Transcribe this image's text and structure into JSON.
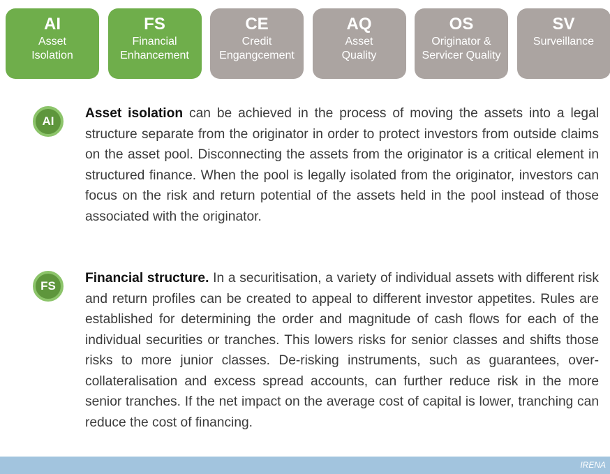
{
  "tabs": [
    {
      "abbr": "AI",
      "label": [
        "Asset",
        "Isolation"
      ],
      "active": true
    },
    {
      "abbr": "FS",
      "label": [
        "Financial",
        "Enhancement"
      ],
      "active": true
    },
    {
      "abbr": "CE",
      "label": [
        "Credit",
        "Engangcement"
      ],
      "active": false
    },
    {
      "abbr": "AQ",
      "label": [
        "Asset",
        "Quality"
      ],
      "active": false
    },
    {
      "abbr": "OS",
      "label": [
        "Originator &",
        "Servicer Quality"
      ],
      "active": false
    },
    {
      "abbr": "SV",
      "label": [
        "Surveillance"
      ],
      "active": false
    }
  ],
  "sections": [
    {
      "badge": "AI",
      "lead": "Asset isolation",
      "text": " can be achieved in the process of moving the assets into a legal structure separate from the originator in order to protect investors from outside claims on the asset pool. Disconnecting the assets from the originator is a critical element in structured finance. When the pool is legally isolated from the originator, investors can focus on the risk and return potential of the assets held in the pool instead of those associated with the originator."
    },
    {
      "badge": "FS",
      "lead": "Financial structure.",
      "text": " In a securitisation, a variety of individual assets with different risk and return profiles can be created to appeal to different investor appetites. Rules are established for determining the order and magnitude of cash flows for each of the individual securities or tranches. This lowers risks for senior classes and shifts those risks to more junior classes. De-risking instruments, such as guarantees, over-collateralisation and excess spread accounts, can further reduce risk in the more senior tranches.  If the net impact on the average cost of capital is lower, tranching can reduce the cost of financing."
    }
  ],
  "footer": "IRENA"
}
